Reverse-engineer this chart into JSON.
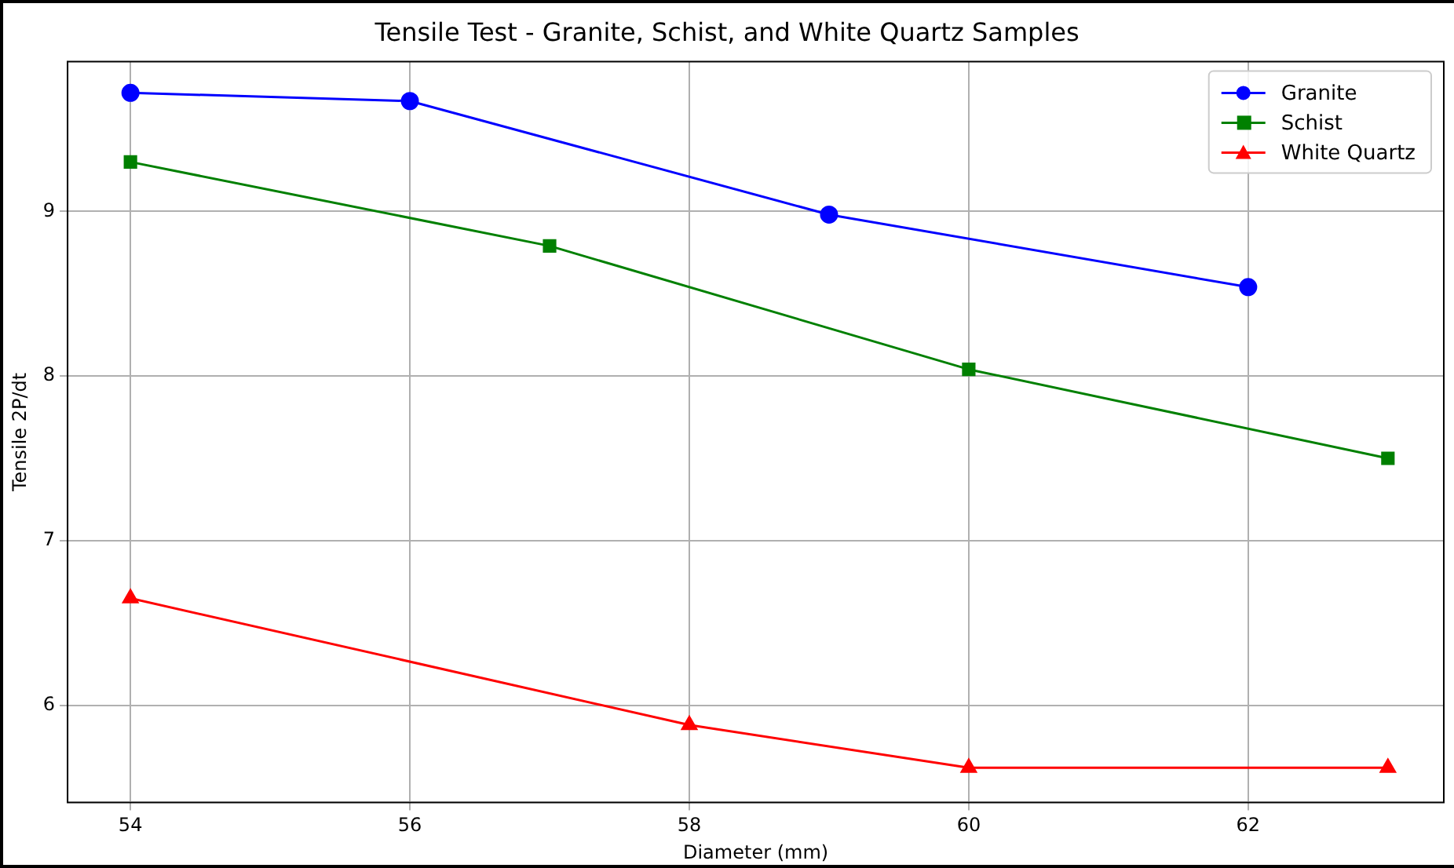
{
  "chart_data": {
    "type": "line",
    "title": "Tensile Test - Granite, Schist, and White Quartz Samples",
    "xlabel": "Diameter (mm)",
    "ylabel": "Tensile 2P/dt",
    "xlim": [
      53.55,
      63.4
    ],
    "xticks": [
      54,
      56,
      58,
      60,
      62
    ],
    "ylim": [
      5.41,
      9.91
    ],
    "yticks": [
      6,
      7,
      8,
      9
    ],
    "grid": true,
    "legend": "top right",
    "series": [
      {
        "name": "Granite",
        "color": "#0000ff",
        "marker": "circle",
        "x": [
          54,
          56,
          59,
          62
        ],
        "values": [
          9.72,
          9.67,
          8.98,
          8.54
        ]
      },
      {
        "name": "Schist",
        "color": "#008000",
        "marker": "square",
        "x": [
          54,
          57,
          60,
          63
        ],
        "values": [
          9.3,
          8.79,
          8.04,
          7.5
        ]
      },
      {
        "name": "White Quartz",
        "color": "#ff0000",
        "marker": "triangle",
        "x": [
          54,
          58,
          60,
          63
        ],
        "values": [
          6.65,
          5.88,
          5.62,
          5.62
        ]
      }
    ]
  }
}
